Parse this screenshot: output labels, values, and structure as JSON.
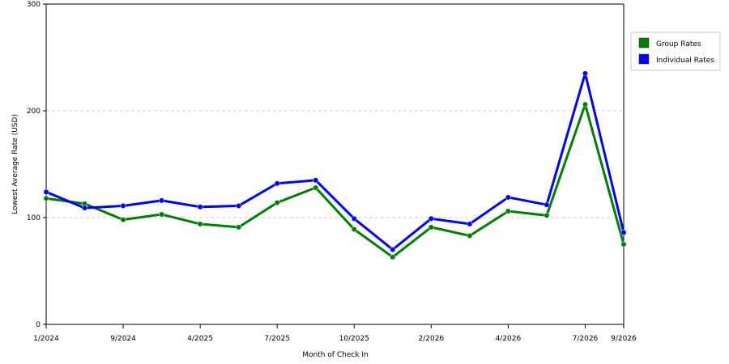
{
  "chart_data": {
    "type": "line",
    "title": "",
    "xlabel": "Month of Check In",
    "ylabel": "Lowest Average Rate (USD)",
    "ylim": [
      0,
      300
    ],
    "yticks": [
      0,
      100,
      200,
      300
    ],
    "grid": "horizontal dashed",
    "legend_position": "top-right",
    "x": [
      "1/2024",
      "5/2024",
      "9/2024",
      "12/2024",
      "4/2025",
      "6/2025",
      "7/2025",
      "9/2025",
      "10/2025",
      "12/2025",
      "2/2026",
      "3/2026",
      "4/2026",
      "5/2026",
      "7/2026",
      "9/2026"
    ],
    "xtick_labels": [
      "1/2024",
      "9/2024",
      "4/2025",
      "7/2025",
      "10/2025",
      "2/2026",
      "4/2026",
      "7/2026",
      "9/2026"
    ],
    "series": [
      {
        "name": "Group Rates",
        "color": "#008000",
        "values": [
          118,
          113,
          98,
          103,
          94,
          91,
          114,
          128,
          89,
          63,
          91,
          83,
          106,
          102,
          206,
          75
        ]
      },
      {
        "name": "Individual Rates",
        "color": "#0000ff",
        "values": [
          124,
          109,
          111,
          116,
          110,
          111,
          132,
          135,
          99,
          70,
          99,
          94,
          119,
          112,
          235,
          86
        ]
      }
    ]
  }
}
